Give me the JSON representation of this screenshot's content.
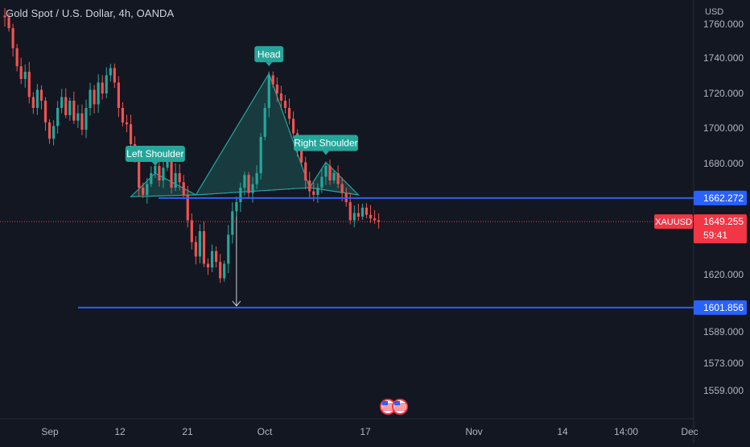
{
  "header": {
    "symbol_title": "Gold Spot / U.S. Dollar, 4h, OANDA",
    "currency": "USD"
  },
  "colors": {
    "background": "#131722",
    "grid": "#1e222d",
    "up": "#26a69a",
    "down": "#ef5350",
    "level_line": "#2962ff",
    "pattern_fill": "#26a69a",
    "price_label": "#f23645"
  },
  "chart_data": {
    "type": "candlestick",
    "symbol": "XAUUSD",
    "timeframe": "4h",
    "y_axis": {
      "ylim": [
        1548,
        1764
      ],
      "tick_labels": [
        "1760.000",
        "1740.000",
        "1720.000",
        "1700.000",
        "1680.000",
        "1620.000",
        "1589.000",
        "1573.000",
        "1559.000"
      ]
    },
    "x_axis": {
      "tick_labels": [
        "Sep",
        "12",
        "21",
        "Oct",
        "17",
        "Nov",
        "14",
        "14:00",
        "Dec"
      ]
    },
    "grid": false,
    "close_path": [
      1762,
      1756,
      1745,
      1735,
      1728,
      1732,
      1718,
      1712,
      1722,
      1716,
      1704,
      1695,
      1702,
      1712,
      1718,
      1708,
      1716,
      1705,
      1709,
      1700,
      1712,
      1722,
      1714,
      1726,
      1720,
      1730,
      1734,
      1726,
      1712,
      1704,
      1703,
      1692,
      1684,
      1668,
      1664,
      1670,
      1676,
      1680,
      1672,
      1679,
      1684,
      1668,
      1676,
      1671,
      1664,
      1650,
      1638,
      1630,
      1644,
      1626,
      1624,
      1633,
      1627,
      1618,
      1626,
      1642,
      1655,
      1660,
      1668,
      1675,
      1665,
      1670,
      1676,
      1696,
      1712,
      1730,
      1725,
      1720,
      1716,
      1712,
      1706,
      1698,
      1690,
      1682,
      1672,
      1666,
      1664,
      1668,
      1674,
      1680,
      1672,
      1676,
      1670,
      1665,
      1660,
      1650,
      1654,
      1652,
      1657,
      1653,
      1651,
      1650,
      1649.255
    ],
    "levels": [
      {
        "name": "neckline",
        "value": 1662.272,
        "label": "1662.272"
      },
      {
        "name": "target",
        "value": 1601.856,
        "label": "1601.856"
      }
    ],
    "current_price": {
      "symbol": "XAUUSD",
      "value": 1649.255,
      "label": "1649.255",
      "countdown": "59:41"
    },
    "annotations": [
      {
        "name": "left-shoulder",
        "text": "Left Shoulder",
        "price": 1676,
        "bar": 37
      },
      {
        "name": "head",
        "text": "Head",
        "price": 1731,
        "bar": 65
      },
      {
        "name": "right-shoulder",
        "text": "Right Shoulder",
        "price": 1682,
        "bar": 79
      }
    ],
    "pattern": {
      "type": "head-and-shoulders",
      "points": [
        {
          "bar": 31,
          "price": 1663
        },
        {
          "bar": 37,
          "price": 1676
        },
        {
          "bar": 47,
          "price": 1664
        },
        {
          "bar": 65,
          "price": 1731
        },
        {
          "bar": 75,
          "price": 1668
        },
        {
          "bar": 79,
          "price": 1682
        },
        {
          "bar": 87,
          "price": 1664
        }
      ],
      "projection": {
        "bar": 57,
        "from": 1662.272,
        "to": 1601.856
      }
    }
  }
}
